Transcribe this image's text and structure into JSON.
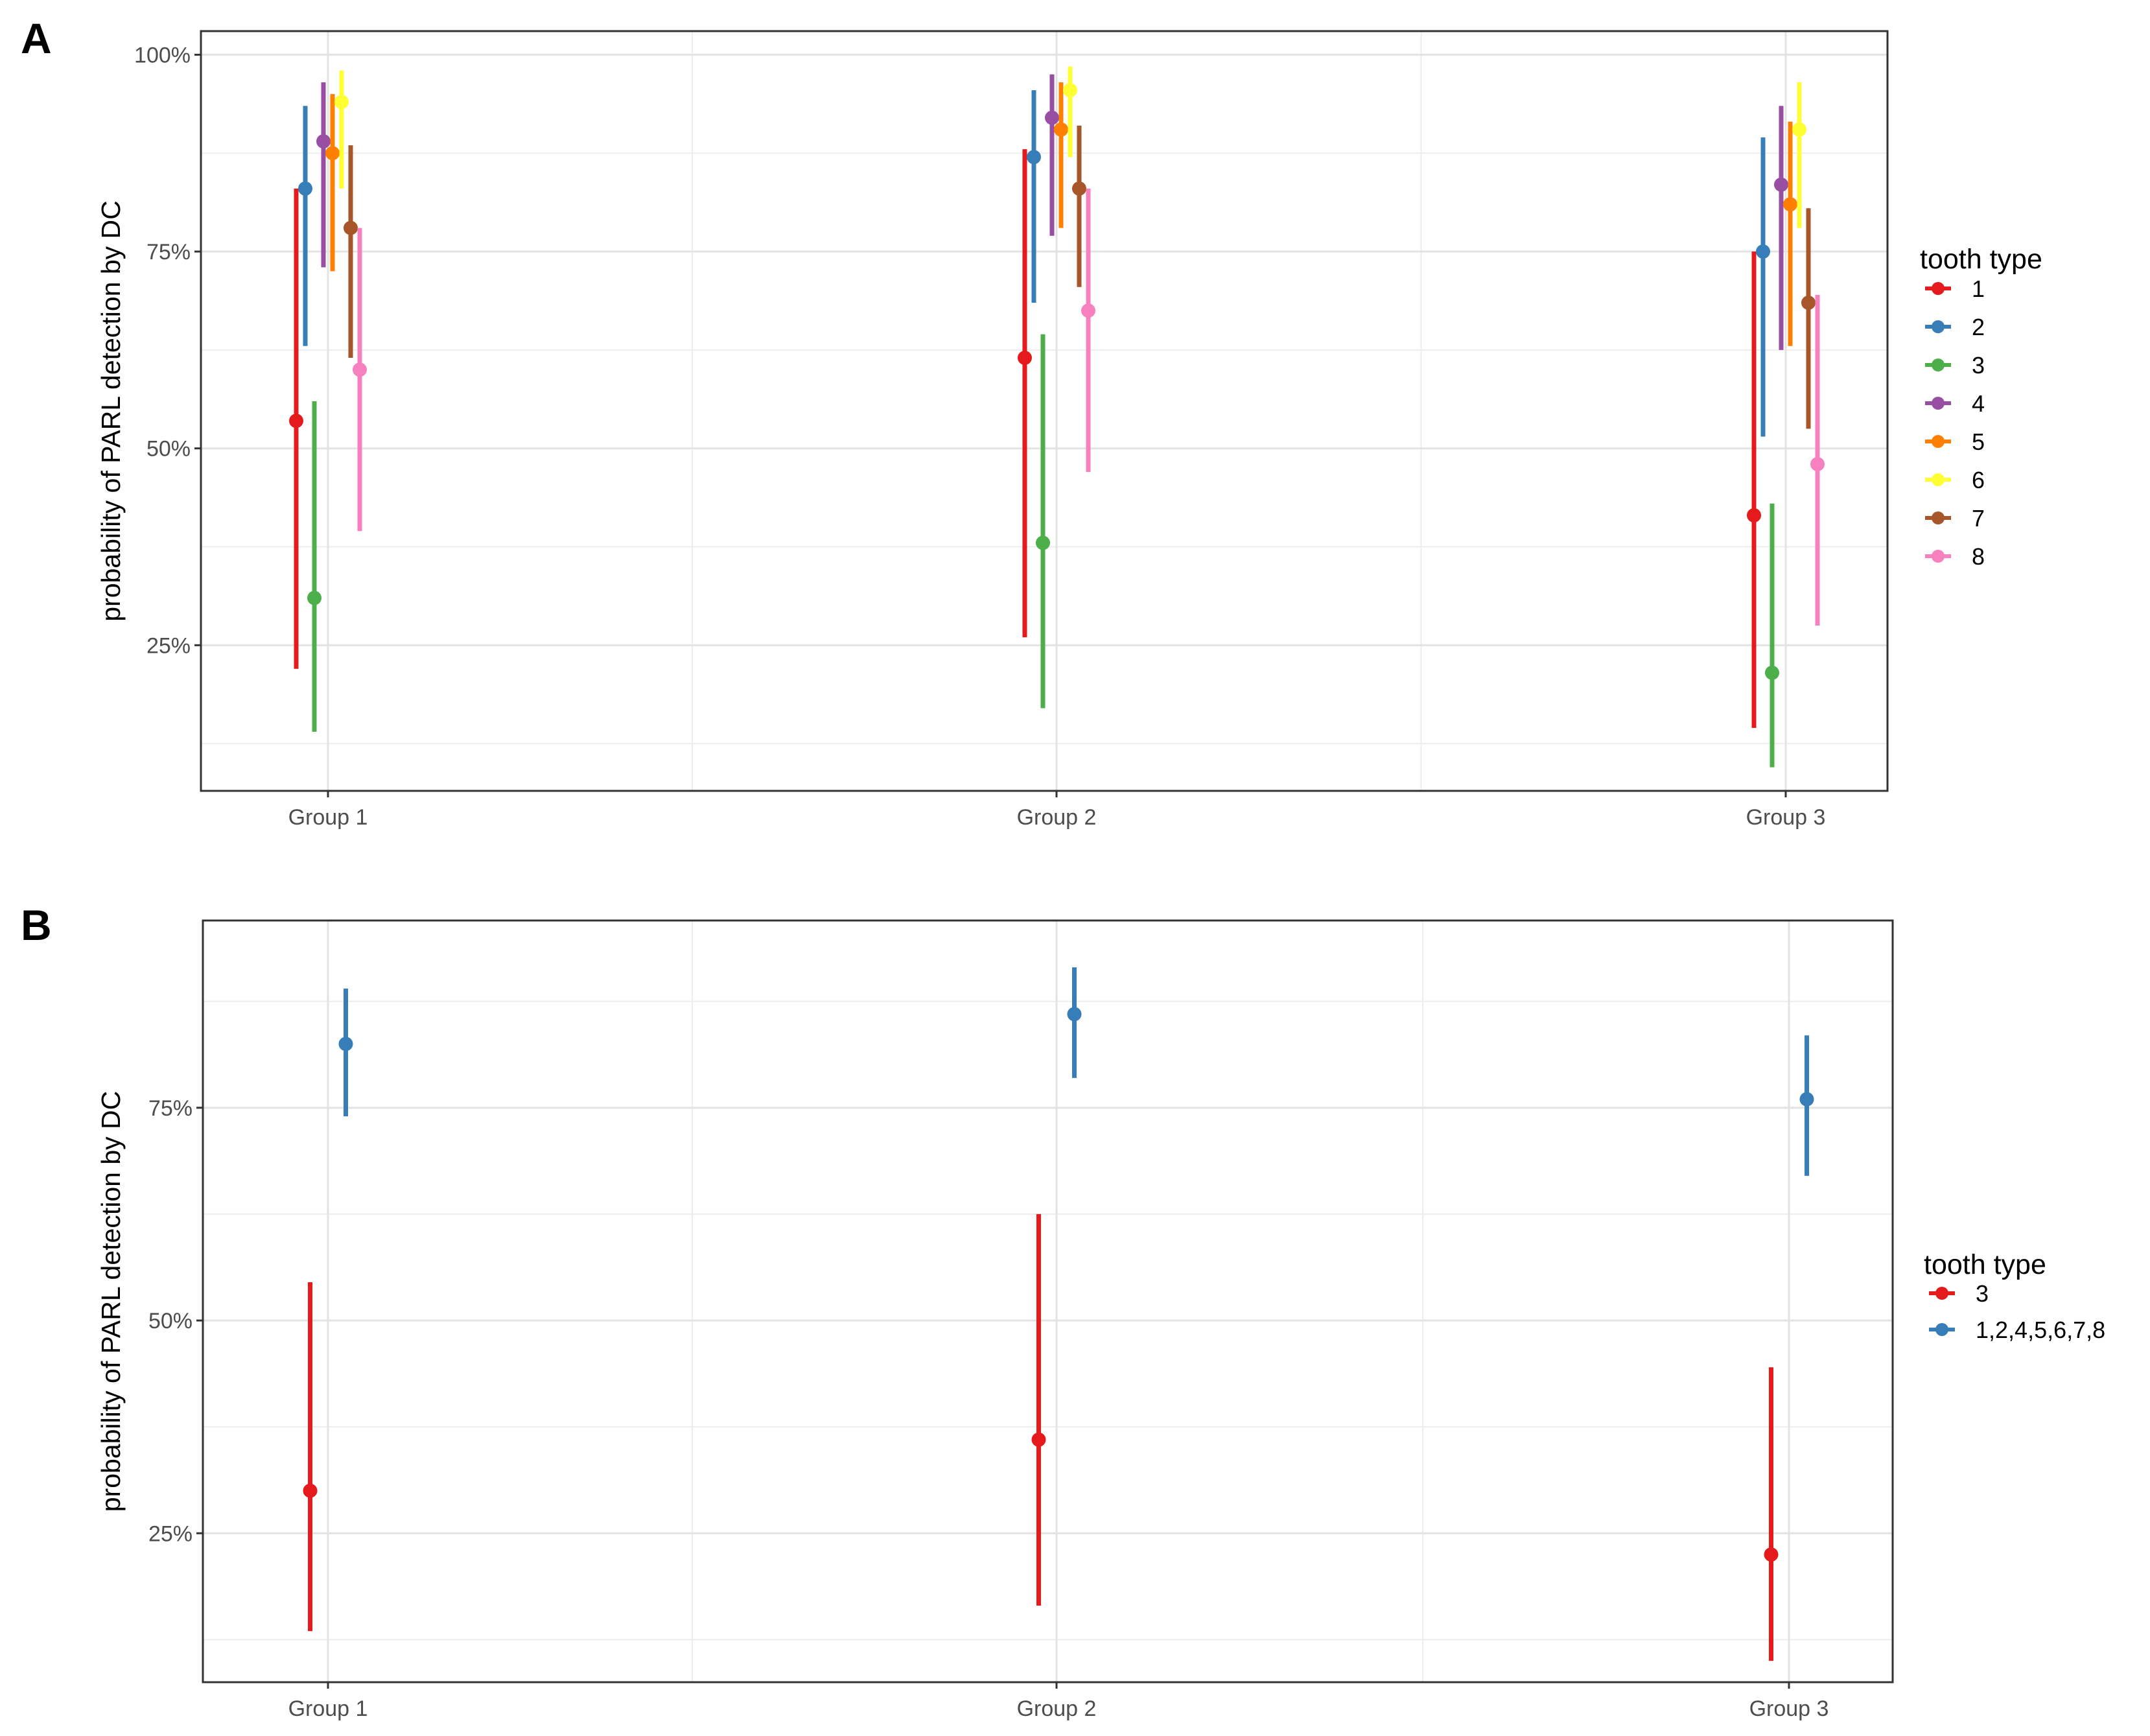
{
  "chart_data": [
    {
      "panel": "A",
      "type": "scatter",
      "subtype": "point-range (error bars)",
      "ylabel": "probability of PARL detection by DC",
      "xlabel": "",
      "categories": [
        "Group 1",
        "Group 2",
        "Group 3"
      ],
      "y_ticks": [
        "25%",
        "50%",
        "75%",
        "100%"
      ],
      "ylim": [
        0.065,
        1.03
      ],
      "grid": true,
      "legend": {
        "title": "tooth type",
        "position": "right"
      },
      "series": [
        {
          "name": "1",
          "color": "#E41A1C",
          "values": [
            0.535,
            0.615,
            0.415
          ],
          "lower": [
            0.22,
            0.26,
            0.145
          ],
          "upper": [
            0.83,
            0.88,
            0.75
          ]
        },
        {
          "name": "2",
          "color": "#377EB8",
          "values": [
            0.83,
            0.87,
            0.75
          ],
          "lower": [
            0.63,
            0.685,
            0.515
          ],
          "upper": [
            0.935,
            0.955,
            0.895
          ]
        },
        {
          "name": "3",
          "color": "#4DAF4A",
          "values": [
            0.31,
            0.38,
            0.215
          ],
          "lower": [
            0.14,
            0.17,
            0.095
          ],
          "upper": [
            0.56,
            0.645,
            0.43
          ]
        },
        {
          "name": "4",
          "color": "#984EA3",
          "values": [
            0.89,
            0.92,
            0.835
          ],
          "lower": [
            0.73,
            0.77,
            0.625
          ],
          "upper": [
            0.965,
            0.975,
            0.935
          ]
        },
        {
          "name": "5",
          "color": "#FF7F00",
          "values": [
            0.875,
            0.905,
            0.81
          ],
          "lower": [
            0.725,
            0.78,
            0.63
          ],
          "upper": [
            0.95,
            0.965,
            0.915
          ]
        },
        {
          "name": "6",
          "color": "#FFFF33",
          "values": [
            0.94,
            0.955,
            0.905
          ],
          "lower": [
            0.83,
            0.87,
            0.78
          ],
          "upper": [
            0.98,
            0.985,
            0.965
          ]
        },
        {
          "name": "7",
          "color": "#A65628",
          "values": [
            0.78,
            0.83,
            0.685
          ],
          "lower": [
            0.615,
            0.705,
            0.525
          ],
          "upper": [
            0.885,
            0.91,
            0.805
          ]
        },
        {
          "name": "8",
          "color": "#F781BF",
          "values": [
            0.6,
            0.675,
            0.48
          ],
          "lower": [
            0.395,
            0.47,
            0.275
          ],
          "upper": [
            0.78,
            0.83,
            0.695
          ]
        }
      ]
    },
    {
      "panel": "B",
      "type": "scatter",
      "subtype": "point-range (error bars)",
      "ylabel": "probability of PARL detection by DC",
      "xlabel": "",
      "categories": [
        "Group 1",
        "Group 2",
        "Group 3"
      ],
      "y_ticks": [
        "25%",
        "50%",
        "75%"
      ],
      "ylim": [
        0.075,
        0.97
      ],
      "grid": true,
      "legend": {
        "title": "tooth type",
        "position": "right"
      },
      "series": [
        {
          "name": "3",
          "color": "#E41A1C",
          "values": [
            0.3,
            0.36,
            0.225
          ],
          "lower": [
            0.135,
            0.165,
            0.1
          ],
          "upper": [
            0.545,
            0.625,
            0.445
          ]
        },
        {
          "name": "1,2,4,5,6,7,8",
          "color": "#377EB8",
          "values": [
            0.825,
            0.86,
            0.76
          ],
          "lower": [
            0.74,
            0.785,
            0.67
          ],
          "upper": [
            0.89,
            0.915,
            0.835
          ]
        }
      ]
    }
  ]
}
